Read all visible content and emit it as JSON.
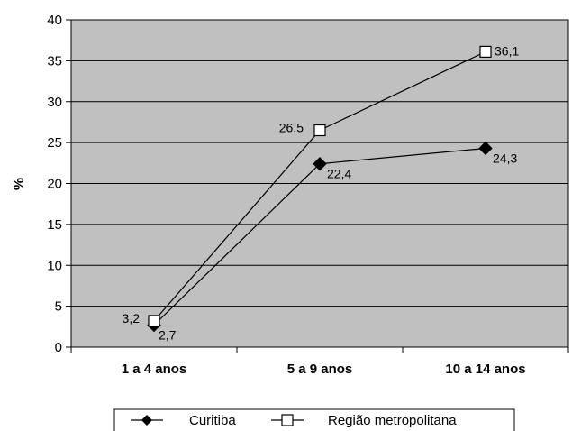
{
  "chart_data": {
    "type": "line",
    "title": "",
    "xlabel": "",
    "ylabel": "%",
    "ylim": [
      0,
      40
    ],
    "yticks": [
      0,
      5,
      10,
      15,
      20,
      25,
      30,
      35,
      40
    ],
    "grid": true,
    "legend_position": "bottom",
    "categories": [
      "1 a 4 anos",
      "5 a 9 anos",
      "10 a 14 anos"
    ],
    "series": [
      {
        "name": "Curitiba",
        "marker": "diamond-filled",
        "color": "#000000",
        "values": [
          2.7,
          22.4,
          24.3
        ],
        "labels": [
          "2,7",
          "22,4",
          "24,3"
        ]
      },
      {
        "name": "Região metropolitana",
        "marker": "square-open",
        "color": "#000000",
        "values": [
          3.2,
          26.5,
          36.1
        ],
        "labels": [
          "3,2",
          "26,5",
          "36,1"
        ]
      }
    ],
    "plot_background": "#c0c0c0"
  }
}
